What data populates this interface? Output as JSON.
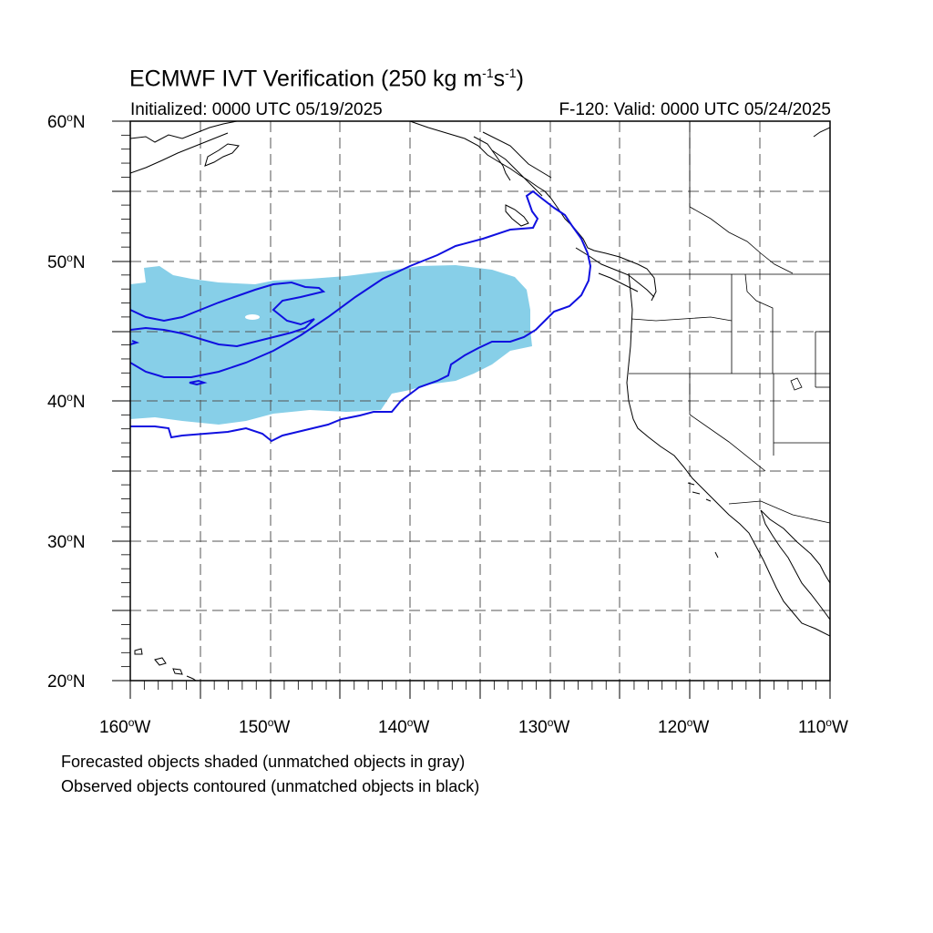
{
  "header": {
    "title_prefix": "ECMWF IVT Verification (250 kg m",
    "title_exp1": "-1",
    "title_mid": "s",
    "title_exp2": "-1",
    "title_suffix": ")",
    "initialized": "Initialized: 0000 UTC 05/19/2025",
    "valid": "F-120: Valid: 0000 UTC 05/24/2025"
  },
  "axes": {
    "lat_labels": [
      {
        "num": "60",
        "unit": "o",
        "hemi": "N"
      },
      {
        "num": "50",
        "unit": "o",
        "hemi": "N"
      },
      {
        "num": "40",
        "unit": "o",
        "hemi": "N"
      },
      {
        "num": "30",
        "unit": "o",
        "hemi": "N"
      },
      {
        "num": "20",
        "unit": "o",
        "hemi": "N"
      }
    ],
    "lon_labels": [
      {
        "num": "160",
        "unit": "o",
        "hemi": "W"
      },
      {
        "num": "150",
        "unit": "o",
        "hemi": "W"
      },
      {
        "num": "140",
        "unit": "o",
        "hemi": "W"
      },
      {
        "num": "130",
        "unit": "o",
        "hemi": "W"
      },
      {
        "num": "120",
        "unit": "o",
        "hemi": "W"
      },
      {
        "num": "110",
        "unit": "o",
        "hemi": "W"
      }
    ],
    "lat_range": [
      20,
      60
    ],
    "lon_range": [
      -160,
      -110
    ],
    "gridlines": "dashed every 5 degrees"
  },
  "notes": {
    "line1": "Forecasted objects shaded (unmatched objects in gray)",
    "line2": "Observed objects contoured (unmatched objects in black)"
  },
  "colors": {
    "forecast_fill": "#87cfe8",
    "observed_contour": "#1010e0",
    "coastline": "#000000",
    "grid": "#555555"
  }
}
